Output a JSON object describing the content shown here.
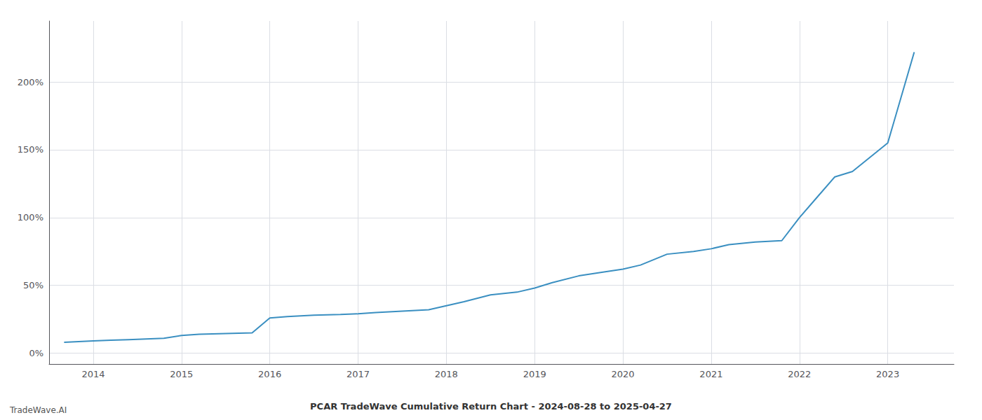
{
  "chart_data": {
    "type": "line",
    "title": "PCAR TradeWave Cumulative Return Chart - 2024-08-28 to 2025-04-27",
    "annotations": [
      "TradeWave.AI"
    ],
    "x": [
      2013.67,
      2014.0,
      2014.2,
      2014.4,
      2014.6,
      2014.8,
      2015.0,
      2015.2,
      2015.5,
      2015.8,
      2016.0,
      2016.2,
      2016.5,
      2016.8,
      2017.0,
      2017.2,
      2017.5,
      2017.8,
      2018.0,
      2018.2,
      2018.5,
      2018.8,
      2019.0,
      2019.2,
      2019.5,
      2019.8,
      2020.0,
      2020.2,
      2020.5,
      2020.8,
      2021.0,
      2021.2,
      2021.5,
      2021.8,
      2022.0,
      2022.2,
      2022.4,
      2022.6,
      2023.0,
      2023.3
    ],
    "values": [
      8,
      9,
      9.5,
      10,
      10.5,
      11,
      13,
      14,
      14.5,
      15,
      26,
      27,
      28,
      28.5,
      29,
      30,
      31,
      32,
      35,
      38,
      43,
      45,
      48,
      52,
      57,
      60,
      62,
      65,
      73,
      75,
      77,
      80,
      82,
      83,
      100,
      115,
      130,
      134,
      155,
      222
    ],
    "color": "#3a8fc1",
    "xlim": [
      2013.5,
      2023.75
    ],
    "xticks": [
      2014,
      2015,
      2016,
      2017,
      2018,
      2019,
      2020,
      2021,
      2022,
      2023
    ],
    "ylim": [
      -8,
      245
    ],
    "yticks": [
      {
        "value": 0,
        "label": "0%"
      },
      {
        "value": 50,
        "label": "50%"
      },
      {
        "value": 100,
        "label": "100%"
      },
      {
        "value": 150,
        "label": "150%"
      },
      {
        "value": 200,
        "label": "200%"
      }
    ],
    "grid": true
  }
}
